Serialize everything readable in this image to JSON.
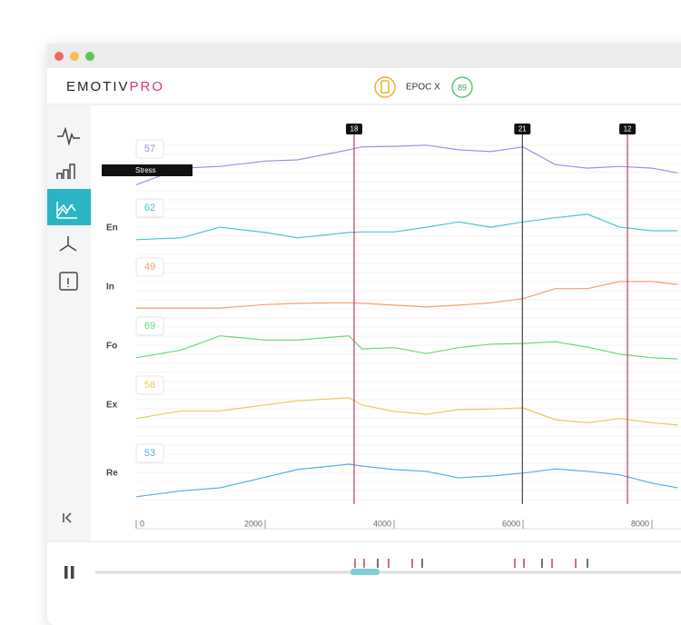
{
  "app": {
    "logo_main": "EMOTIV",
    "logo_accent": "PRO",
    "device": "EPOC X",
    "signal": "89"
  },
  "chart_data": {
    "type": "line",
    "x": [
      0,
      700,
      1300,
      2000,
      2500,
      3300,
      3500,
      4000,
      4500,
      5000,
      5500,
      6000,
      6500,
      7000,
      7500,
      8000,
      8400
    ],
    "xlim": [
      0,
      8450
    ],
    "xticks": [
      0,
      2000,
      4000,
      6000,
      8000
    ],
    "ylim": [
      0,
      100
    ],
    "series": [
      {
        "name": "Stress",
        "color": "#a18ee2",
        "current": 57,
        "values": [
          18,
          46,
          49,
          58,
          60,
          77,
          82,
          83,
          85,
          77,
          74,
          82,
          52,
          46,
          49,
          46,
          38
        ]
      },
      {
        "name": "En",
        "color": "#4cc6c6",
        "current": 62,
        "values": [
          25,
          28,
          46,
          37,
          28,
          37,
          38,
          38,
          46,
          55,
          46,
          55,
          62,
          68,
          46,
          40,
          40
        ]
      },
      {
        "name": "In",
        "color": "#f0a070",
        "current": 49,
        "values": [
          9,
          9,
          9,
          15,
          17,
          18,
          17,
          14,
          11,
          14,
          18,
          25,
          42,
          42,
          54,
          54,
          49
        ]
      },
      {
        "name": "Fo",
        "color": "#6ad67a",
        "current": 69,
        "values": [
          25,
          38,
          62,
          55,
          55,
          62,
          40,
          42,
          32,
          42,
          48,
          49,
          52,
          43,
          31,
          25,
          23
        ]
      },
      {
        "name": "Ex",
        "color": "#e6cc55",
        "current": 58,
        "values": [
          22,
          35,
          35,
          45,
          52,
          57,
          45,
          34,
          29,
          37,
          38,
          40,
          20,
          15,
          22,
          15,
          11
        ]
      },
      {
        "name": "Re",
        "color": "#5aaee0",
        "current": 53,
        "values": [
          5,
          15,
          20,
          38,
          51,
          60,
          57,
          51,
          48,
          37,
          40,
          45,
          52,
          48,
          42,
          28,
          20
        ]
      }
    ],
    "markers": [
      {
        "id": "18",
        "x": 3380,
        "color": "#c7385e"
      },
      {
        "id": "21",
        "x": 5990,
        "color": "#444444"
      },
      {
        "id": "12",
        "x": 7620,
        "color": "#c7385e"
      }
    ]
  }
}
